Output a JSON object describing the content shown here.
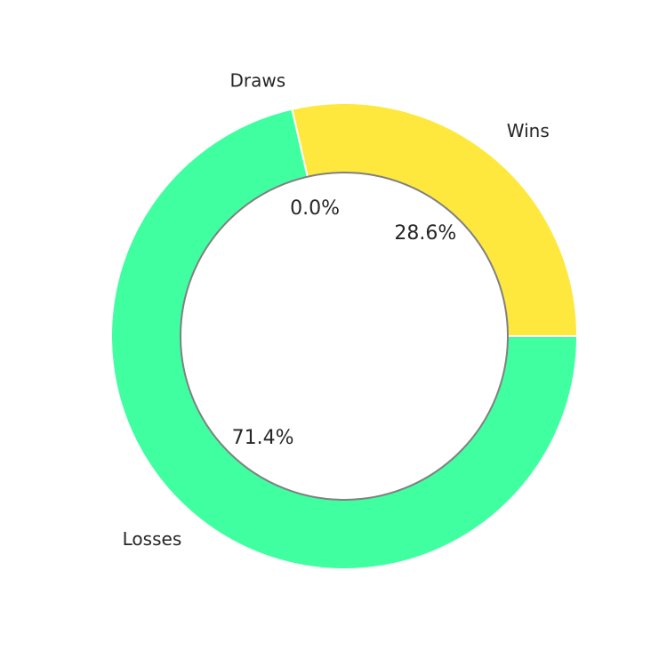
{
  "chart_data": {
    "type": "pie",
    "variant": "donut",
    "slices": [
      {
        "label": "Wins",
        "value": 28.6,
        "pct_label": "28.6%",
        "color": "#FFE83D"
      },
      {
        "label": "Draws",
        "value": 0.0,
        "pct_label": "0.0%",
        "color": "#FFFFFF"
      },
      {
        "label": "Losses",
        "value": 71.4,
        "pct_label": "71.4%",
        "color": "#40FFA0"
      }
    ],
    "start_angle_deg": 0,
    "direction": "counterclockwise",
    "edge_color": "#FFFFFF",
    "hole_edge_color": "#808080",
    "background": "#FFFFFF"
  }
}
